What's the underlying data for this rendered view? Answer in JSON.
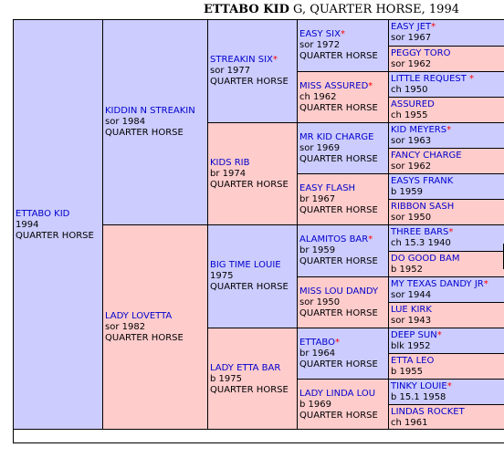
{
  "header": {
    "horse": "ETTABO KID",
    "rest": " G, QUARTER HORSE, 1994"
  },
  "gen1": {
    "name": "ETTABO KID",
    "star": "",
    "line1": "1994",
    "line2": "QUARTER HORSE"
  },
  "gen2": [
    {
      "name": "KIDDIN N STREAKIN",
      "star": "",
      "line1": "sor 1984",
      "line2": "QUARTER HORSE"
    },
    {
      "name": "LADY LOVETTA",
      "star": "",
      "line1": "sor 1982",
      "line2": "QUARTER HORSE"
    }
  ],
  "gen3": [
    {
      "name": "STREAKIN SIX",
      "star": "*",
      "line1": "sor 1977",
      "line2": "QUARTER HORSE"
    },
    {
      "name": "KIDS RIB",
      "star": "",
      "line1": "br 1974",
      "line2": "QUARTER HORSE"
    },
    {
      "name": "BIG TIME LOUIE",
      "star": "",
      "line1": "1975",
      "line2": "QUARTER HORSE"
    },
    {
      "name": "LADY ETTA BAR",
      "star": "",
      "line1": "b 1975",
      "line2": "QUARTER HORSE"
    }
  ],
  "gen4": [
    {
      "name": "EASY SIX",
      "star": "*",
      "line1": "sor 1972",
      "line2": "QUARTER HORSE"
    },
    {
      "name": "MISS ASSURED",
      "star": "*",
      "line1": "ch 1962",
      "line2": "QUARTER HORSE"
    },
    {
      "name": "MR KID CHARGE",
      "star": "",
      "line1": "sor 1969",
      "line2": "QUARTER HORSE"
    },
    {
      "name": "EASY FLASH",
      "star": "",
      "line1": "br 1967",
      "line2": "QUARTER HORSE"
    },
    {
      "name": "ALAMITOS BAR",
      "star": "*",
      "line1": "br 1959",
      "line2": "QUARTER HORSE"
    },
    {
      "name": "MISS LOU DANDY",
      "star": "",
      "line1": "sor 1950",
      "line2": "QUARTER HORSE"
    },
    {
      "name": "ETTABO",
      "star": "*",
      "line1": "br 1964",
      "line2": "QUARTER HORSE"
    },
    {
      "name": "LADY LINDA LOU",
      "star": "",
      "line1": "b 1969",
      "line2": "QUARTER HORSE"
    }
  ],
  "gen5": [
    {
      "name": "EASY JET",
      "star": "*",
      "line1": "sor 1967"
    },
    {
      "name": "PEGGY TORO",
      "star": "",
      "line1": "sor 1962"
    },
    {
      "name": "LITTLE REQUEST ",
      "star": "*",
      "line1": "ch 1950"
    },
    {
      "name": "ASSURED",
      "star": "",
      "line1": "ch 1955"
    },
    {
      "name": "KID MEYERS",
      "star": "*",
      "line1": "sor 1963"
    },
    {
      "name": "FANCY CHARGE",
      "star": "",
      "line1": "sor 1962"
    },
    {
      "name": "EASYS FRANK",
      "star": "",
      "line1": "b 1959"
    },
    {
      "name": "RIBBON SASH",
      "star": "",
      "line1": "sor 1950"
    },
    {
      "name": "THREE BARS",
      "star": "*",
      "line1": "ch 15.3 1940"
    },
    {
      "name": "DO GOOD BAM",
      "star": "",
      "line1": "b 1952"
    },
    {
      "name": "MY TEXAS DANDY JR",
      "star": "*",
      "line1": "sor 1944"
    },
    {
      "name": "LUE KIRK",
      "star": "",
      "line1": "sor 1943"
    },
    {
      "name": "DEEP SUN",
      "star": "*",
      "line1": "blk 1952"
    },
    {
      "name": "ETTA LEO",
      "star": "",
      "line1": "b 1955"
    },
    {
      "name": "TINKY LOUIE",
      "star": "*",
      "line1": "b 15.1 1958"
    },
    {
      "name": "LINDAS ROCKET",
      "star": "",
      "line1": "ch 1961"
    }
  ],
  "colors": {
    "male": "#ccccff",
    "female": "#ffcccc",
    "name": "#0000cc",
    "star": "#ff0000"
  }
}
